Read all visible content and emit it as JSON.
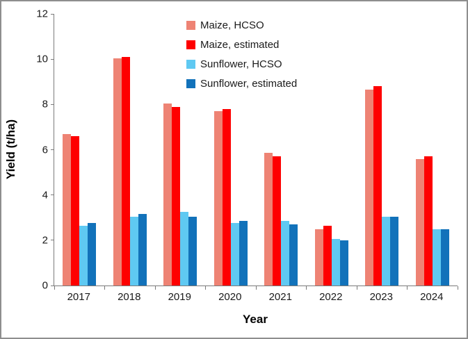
{
  "figure": {
    "background_color": "#ffffff",
    "border_color": "#8e8e8e",
    "axis_line_color": "#7a7a7a",
    "text_color": "#1a1a1a"
  },
  "chart_data": {
    "type": "bar",
    "title": "",
    "xlabel": "Year",
    "ylabel": "Yield (t/ha)",
    "categories": [
      "2017",
      "2018",
      "2019",
      "2020",
      "2021",
      "2022",
      "2023",
      "2024"
    ],
    "series": [
      {
        "name": "Maize, HCSO",
        "color": "#EE8374",
        "values": [
          6.7,
          10.05,
          8.05,
          7.7,
          5.85,
          2.5,
          8.65,
          5.6
        ]
      },
      {
        "name": "Maize, estimated",
        "color": "#FE0000",
        "values": [
          6.6,
          10.1,
          7.9,
          7.8,
          5.7,
          2.65,
          8.8,
          5.7
        ]
      },
      {
        "name": "Sunflower, HCSO",
        "color": "#5FC9F2",
        "values": [
          2.65,
          3.05,
          3.25,
          2.75,
          2.85,
          2.05,
          3.05,
          2.5
        ]
      },
      {
        "name": "Sunflower, estimated",
        "color": "#1272BA",
        "values": [
          2.75,
          3.15,
          3.05,
          2.85,
          2.7,
          2.0,
          3.05,
          2.5
        ]
      }
    ],
    "ylim": [
      0,
      12
    ],
    "yticks": [
      0,
      2,
      4,
      6,
      8,
      10,
      12
    ],
    "grid": false,
    "legend_position": "top-center-inside",
    "legend_orientation": "vertical"
  }
}
